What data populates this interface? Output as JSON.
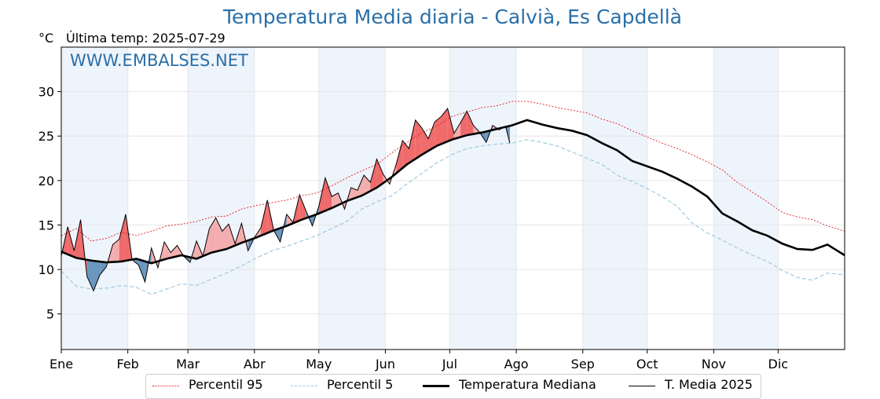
{
  "title": "Temperatura Media diaria - Calvià, Es Capdellà",
  "unit": "°C",
  "last_temp_label": "Última temp: 2025-07-29",
  "watermark": "WWW.EMBALSES.NET",
  "colors": {
    "p95": "#e41a1c",
    "p5": "#9ecae1",
    "mediana": "#000000",
    "media2025": "#000000",
    "above_fill": "#f4a5a5",
    "above_fill_strong": "#ee5b5b",
    "below_fill": "#5b8db8",
    "month_band": "#eef4fb",
    "title": "#2a6fa8"
  },
  "chart_data": {
    "type": "line",
    "xlabel": "",
    "ylabel": "°C",
    "ylim": [
      1,
      35
    ],
    "yticks": [
      5,
      10,
      15,
      20,
      25,
      30
    ],
    "xlim": [
      1,
      366
    ],
    "months": [
      {
        "label": "Ene",
        "day": 1
      },
      {
        "label": "Feb",
        "day": 32
      },
      {
        "label": "Mar",
        "day": 60
      },
      {
        "label": "Abr",
        "day": 91
      },
      {
        "label": "May",
        "day": 121
      },
      {
        "label": "Jun",
        "day": 152
      },
      {
        "label": "Jul",
        "day": 182
      },
      {
        "label": "Ago",
        "day": 213
      },
      {
        "label": "Sep",
        "day": 244
      },
      {
        "label": "Oct",
        "day": 274
      },
      {
        "label": "Nov",
        "day": 305
      },
      {
        "label": "Dic",
        "day": 335
      }
    ],
    "grid": true,
    "legend_position": "bottom",
    "series": [
      {
        "key": "p95",
        "name": "Percentil 95",
        "x": [
          1,
          8,
          15,
          22,
          29,
          36,
          43,
          50,
          57,
          64,
          71,
          78,
          85,
          92,
          99,
          106,
          113,
          120,
          127,
          134,
          141,
          148,
          155,
          162,
          169,
          176,
          183,
          190,
          197,
          204,
          211,
          218,
          225,
          232,
          239,
          246,
          253,
          260,
          267,
          274,
          281,
          288,
          295,
          302,
          309,
          316,
          323,
          330,
          337,
          344,
          351,
          358,
          366
        ],
        "y": [
          13.8,
          14.6,
          13.2,
          13.5,
          14.2,
          13.8,
          14.3,
          14.9,
          15.1,
          15.4,
          15.9,
          16.0,
          16.8,
          17.2,
          17.5,
          17.8,
          18.3,
          18.6,
          19.4,
          20.3,
          21.1,
          21.8,
          23.1,
          24.3,
          25.4,
          26.1,
          27.2,
          27.7,
          28.2,
          28.4,
          28.9,
          28.9,
          28.6,
          28.2,
          27.9,
          27.6,
          26.9,
          26.4,
          25.6,
          24.9,
          24.2,
          23.6,
          22.9,
          22.1,
          21.2,
          19.8,
          18.7,
          17.6,
          16.4,
          15.9,
          15.6,
          14.9,
          14.3
        ]
      },
      {
        "key": "p5",
        "name": "Percentil 5",
        "x": [
          1,
          8,
          15,
          22,
          29,
          36,
          43,
          50,
          57,
          64,
          71,
          78,
          85,
          92,
          99,
          106,
          113,
          120,
          127,
          134,
          141,
          148,
          155,
          162,
          169,
          176,
          183,
          190,
          197,
          204,
          211,
          218,
          225,
          232,
          239,
          246,
          253,
          260,
          267,
          274,
          281,
          288,
          295,
          302,
          309,
          316,
          323,
          330,
          337,
          344,
          351,
          358,
          366
        ],
        "y": [
          9.8,
          8.1,
          7.8,
          7.9,
          8.2,
          8.0,
          7.2,
          7.8,
          8.4,
          8.2,
          8.9,
          9.6,
          10.4,
          11.3,
          12.1,
          12.6,
          13.2,
          13.8,
          14.6,
          15.4,
          16.8,
          17.6,
          18.3,
          19.6,
          20.8,
          22.0,
          22.9,
          23.6,
          23.9,
          24.1,
          24.2,
          24.6,
          24.3,
          23.9,
          23.2,
          22.5,
          21.8,
          20.6,
          19.9,
          19.1,
          18.2,
          17.1,
          15.2,
          14.1,
          13.3,
          12.4,
          11.6,
          10.9,
          9.9,
          9.1,
          8.8,
          9.6,
          9.4
        ]
      },
      {
        "key": "mediana",
        "name": "Temperatura Mediana",
        "x": [
          1,
          8,
          15,
          22,
          29,
          36,
          43,
          50,
          57,
          64,
          71,
          78,
          85,
          92,
          99,
          106,
          113,
          120,
          127,
          134,
          141,
          148,
          155,
          162,
          169,
          176,
          183,
          190,
          197,
          204,
          211,
          218,
          225,
          232,
          239,
          246,
          253,
          260,
          267,
          274,
          281,
          288,
          295,
          302,
          309,
          316,
          323,
          330,
          337,
          344,
          351,
          358,
          366
        ],
        "y": [
          12.0,
          11.3,
          11.0,
          10.8,
          10.9,
          11.2,
          10.7,
          11.2,
          11.6,
          11.2,
          11.9,
          12.3,
          13.0,
          13.6,
          14.3,
          14.9,
          15.6,
          16.2,
          16.9,
          17.7,
          18.3,
          19.2,
          20.4,
          21.8,
          22.9,
          23.9,
          24.6,
          25.1,
          25.4,
          25.8,
          26.2,
          26.8,
          26.3,
          25.9,
          25.6,
          25.1,
          24.2,
          23.4,
          22.2,
          21.6,
          21.0,
          20.2,
          19.3,
          18.2,
          16.3,
          15.4,
          14.4,
          13.8,
          12.9,
          12.3,
          12.2,
          12.8,
          11.6
        ]
      },
      {
        "key": "media2025",
        "name": "T. Media 2025",
        "x": [
          1,
          4,
          7,
          10,
          13,
          16,
          19,
          22,
          25,
          28,
          31,
          34,
          37,
          40,
          43,
          46,
          49,
          52,
          55,
          58,
          61,
          64,
          67,
          70,
          73,
          76,
          79,
          82,
          85,
          88,
          91,
          94,
          97,
          100,
          103,
          106,
          109,
          112,
          115,
          118,
          121,
          124,
          127,
          130,
          133,
          136,
          139,
          142,
          145,
          148,
          151,
          154,
          157,
          160,
          163,
          166,
          169,
          172,
          175,
          178,
          181,
          184,
          187,
          190,
          193,
          196,
          199,
          202,
          205,
          208,
          210
        ],
        "y": [
          11.5,
          14.8,
          12.1,
          15.6,
          9.2,
          7.6,
          9.4,
          10.3,
          12.8,
          13.4,
          16.2,
          11.1,
          10.5,
          8.6,
          12.4,
          10.2,
          13.1,
          11.9,
          12.7,
          11.5,
          10.8,
          13.2,
          11.5,
          14.6,
          15.8,
          14.3,
          15.1,
          12.9,
          15.2,
          12.1,
          13.6,
          14.7,
          17.8,
          14.4,
          13.1,
          16.2,
          15.3,
          18.4,
          16.6,
          14.9,
          17.1,
          20.3,
          18.2,
          18.6,
          16.8,
          19.2,
          18.9,
          20.6,
          19.8,
          22.4,
          20.7,
          19.6,
          21.8,
          24.5,
          23.6,
          26.8,
          25.9,
          24.7,
          26.6,
          27.2,
          28.1,
          25.3,
          26.5,
          27.8,
          26.2,
          25.4,
          24.3,
          26.2,
          25.7,
          26.1,
          24.2
        ]
      }
    ]
  }
}
